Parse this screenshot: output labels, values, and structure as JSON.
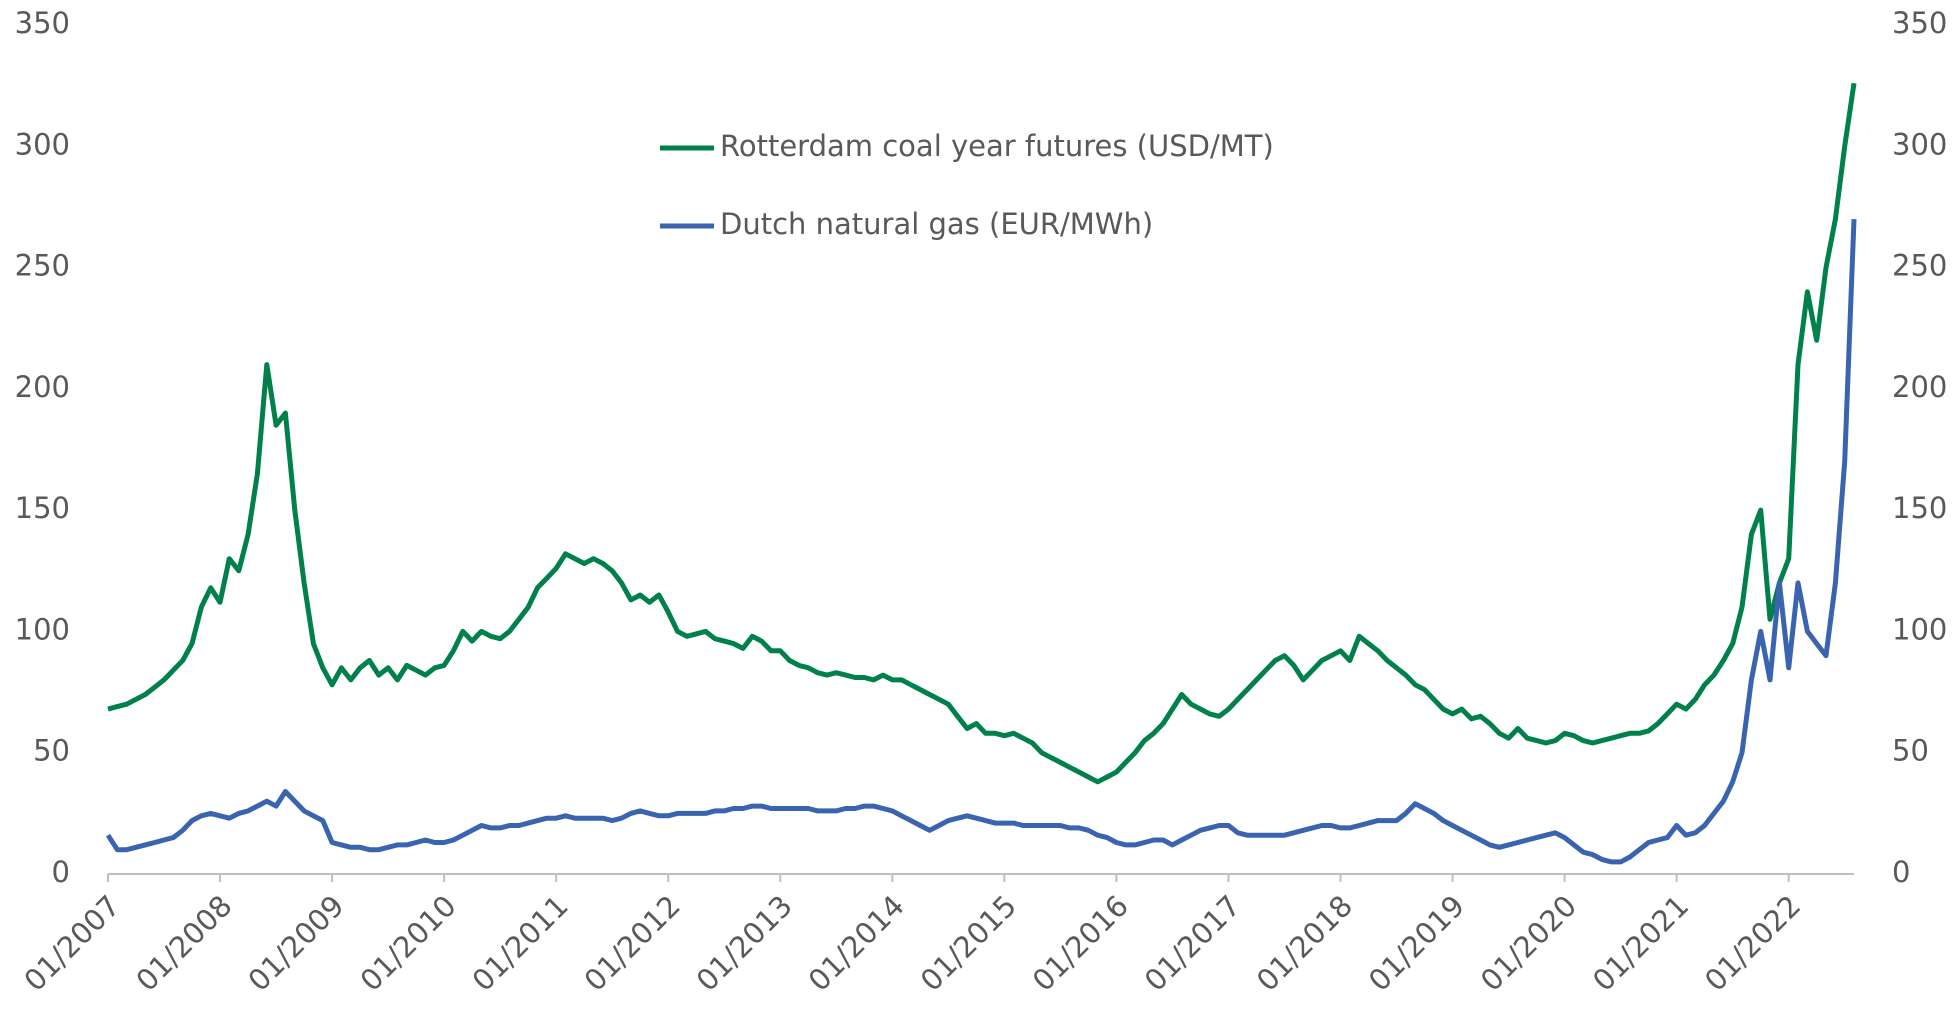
{
  "chart_data": {
    "type": "line",
    "x": [
      2007,
      2007.083,
      2007.167,
      2007.25,
      2007.333,
      2007.417,
      2007.5,
      2007.583,
      2007.667,
      2007.75,
      2007.833,
      2007.917,
      2008,
      2008.083,
      2008.167,
      2008.25,
      2008.333,
      2008.417,
      2008.5,
      2008.583,
      2008.667,
      2008.75,
      2008.833,
      2008.917,
      2009,
      2009.083,
      2009.167,
      2009.25,
      2009.333,
      2009.417,
      2009.5,
      2009.583,
      2009.667,
      2009.75,
      2009.833,
      2009.917,
      2010,
      2010.083,
      2010.167,
      2010.25,
      2010.333,
      2010.417,
      2010.5,
      2010.583,
      2010.667,
      2010.75,
      2010.833,
      2010.917,
      2011,
      2011.083,
      2011.167,
      2011.25,
      2011.333,
      2011.417,
      2011.5,
      2011.583,
      2011.667,
      2011.75,
      2011.833,
      2011.917,
      2012,
      2012.083,
      2012.167,
      2012.25,
      2012.333,
      2012.417,
      2012.5,
      2012.583,
      2012.667,
      2012.75,
      2012.833,
      2012.917,
      2013,
      2013.083,
      2013.167,
      2013.25,
      2013.333,
      2013.417,
      2013.5,
      2013.583,
      2013.667,
      2013.75,
      2013.833,
      2013.917,
      2014,
      2014.083,
      2014.167,
      2014.25,
      2014.333,
      2014.417,
      2014.5,
      2014.583,
      2014.667,
      2014.75,
      2014.833,
      2014.917,
      2015,
      2015.083,
      2015.167,
      2015.25,
      2015.333,
      2015.417,
      2015.5,
      2015.583,
      2015.667,
      2015.75,
      2015.833,
      2015.917,
      2016,
      2016.083,
      2016.167,
      2016.25,
      2016.333,
      2016.417,
      2016.5,
      2016.583,
      2016.667,
      2016.75,
      2016.833,
      2016.917,
      2017,
      2017.083,
      2017.167,
      2017.25,
      2017.333,
      2017.417,
      2017.5,
      2017.583,
      2017.667,
      2017.75,
      2017.833,
      2017.917,
      2018,
      2018.083,
      2018.167,
      2018.25,
      2018.333,
      2018.417,
      2018.5,
      2018.583,
      2018.667,
      2018.75,
      2018.833,
      2018.917,
      2019,
      2019.083,
      2019.167,
      2019.25,
      2019.333,
      2019.417,
      2019.5,
      2019.583,
      2019.667,
      2019.75,
      2019.833,
      2019.917,
      2020,
      2020.083,
      2020.167,
      2020.25,
      2020.333,
      2020.417,
      2020.5,
      2020.583,
      2020.667,
      2020.75,
      2020.833,
      2020.917,
      2021,
      2021.083,
      2021.167,
      2021.25,
      2021.333,
      2021.417,
      2021.5,
      2021.583,
      2021.667,
      2021.75,
      2021.833,
      2021.917,
      2022,
      2022.083,
      2022.167,
      2022.25,
      2022.333,
      2022.417,
      2022.5,
      2022.583
    ],
    "series": [
      {
        "name": "Rotterdam coal year futures (USD/MT)",
        "color": "#00804a",
        "values": [
          68,
          69,
          70,
          72,
          74,
          77,
          80,
          84,
          88,
          95,
          110,
          118,
          112,
          130,
          125,
          140,
          165,
          210,
          185,
          190,
          150,
          120,
          95,
          85,
          78,
          85,
          80,
          85,
          88,
          82,
          85,
          80,
          86,
          84,
          82,
          85,
          86,
          92,
          100,
          96,
          100,
          98,
          97,
          100,
          105,
          110,
          118,
          122,
          126,
          132,
          130,
          128,
          130,
          128,
          125,
          120,
          113,
          115,
          112,
          115,
          108,
          100,
          98,
          99,
          100,
          97,
          96,
          95,
          93,
          98,
          96,
          92,
          92,
          88,
          86,
          85,
          83,
          82,
          83,
          82,
          81,
          81,
          80,
          82,
          80,
          80,
          78,
          76,
          74,
          72,
          70,
          65,
          60,
          62,
          58,
          58,
          57,
          58,
          56,
          54,
          50,
          48,
          46,
          44,
          42,
          40,
          38,
          40,
          42,
          46,
          50,
          55,
          58,
          62,
          68,
          74,
          70,
          68,
          66,
          65,
          68,
          72,
          76,
          80,
          84,
          88,
          90,
          86,
          80,
          84,
          88,
          90,
          92,
          88,
          98,
          95,
          92,
          88,
          85,
          82,
          78,
          76,
          72,
          68,
          66,
          68,
          64,
          65,
          62,
          58,
          56,
          60,
          56,
          55,
          54,
          55,
          58,
          57,
          55,
          54,
          55,
          56,
          57,
          58,
          58,
          59,
          62,
          66,
          70,
          68,
          72,
          78,
          82,
          88,
          95,
          110,
          140,
          150,
          105,
          120,
          130,
          210,
          240,
          220,
          250,
          270,
          300,
          326
        ]
      },
      {
        "name": "Dutch natural gas (EUR/MWh)",
        "color": "#3a63b0",
        "axis": "y2",
        "values": [
          16,
          10,
          10,
          11,
          12,
          13,
          14,
          15,
          18,
          22,
          24,
          25,
          24,
          23,
          25,
          26,
          28,
          30,
          28,
          34,
          30,
          26,
          24,
          22,
          13,
          12,
          11,
          11,
          10,
          10,
          11,
          12,
          12,
          13,
          14,
          13,
          13,
          14,
          16,
          18,
          20,
          19,
          19,
          20,
          20,
          21,
          22,
          23,
          23,
          24,
          23,
          23,
          23,
          23,
          22,
          23,
          25,
          26,
          25,
          24,
          24,
          25,
          25,
          25,
          25,
          26,
          26,
          27,
          27,
          28,
          28,
          27,
          27,
          27,
          27,
          27,
          26,
          26,
          26,
          27,
          27,
          28,
          28,
          27,
          26,
          24,
          22,
          20,
          18,
          20,
          22,
          23,
          24,
          23,
          22,
          21,
          21,
          21,
          20,
          20,
          20,
          20,
          20,
          19,
          19,
          18,
          16,
          15,
          13,
          12,
          12,
          13,
          14,
          14,
          12,
          14,
          16,
          18,
          19,
          20,
          20,
          17,
          16,
          16,
          16,
          16,
          16,
          17,
          18,
          19,
          20,
          20,
          19,
          19,
          20,
          21,
          22,
          22,
          22,
          25,
          29,
          27,
          25,
          22,
          20,
          18,
          16,
          14,
          12,
          11,
          12,
          13,
          14,
          15,
          16,
          17,
          15,
          12,
          9,
          8,
          6,
          5,
          5,
          7,
          10,
          13,
          14,
          15,
          20,
          16,
          17,
          20,
          25,
          30,
          38,
          50,
          80,
          100,
          80,
          120,
          85,
          120,
          100,
          95,
          90,
          120,
          170,
          270
        ]
      }
    ],
    "xlim": [
      2007,
      2022.583
    ],
    "xticks": [
      {
        "value": 2007,
        "label": "01/2007"
      },
      {
        "value": 2008,
        "label": "01/2008"
      },
      {
        "value": 2009,
        "label": "01/2009"
      },
      {
        "value": 2010,
        "label": "01/2010"
      },
      {
        "value": 2011,
        "label": "01/2011"
      },
      {
        "value": 2012,
        "label": "01/2012"
      },
      {
        "value": 2013,
        "label": "01/2013"
      },
      {
        "value": 2014,
        "label": "01/2014"
      },
      {
        "value": 2015,
        "label": "01/2015"
      },
      {
        "value": 2016,
        "label": "01/2016"
      },
      {
        "value": 2017,
        "label": "01/2017"
      },
      {
        "value": 2018,
        "label": "01/2018"
      },
      {
        "value": 2019,
        "label": "01/2019"
      },
      {
        "value": 2020,
        "label": "01/2020"
      },
      {
        "value": 2021,
        "label": "01/2021"
      },
      {
        "value": 2022,
        "label": "01/2022"
      }
    ],
    "ylim": [
      0,
      350
    ],
    "yticks": [
      0,
      50,
      100,
      150,
      200,
      250,
      300,
      350
    ],
    "y2lim": [
      0,
      350
    ],
    "y2ticks": [
      0,
      50,
      100,
      150,
      200,
      250,
      300,
      350
    ],
    "grid": false
  }
}
